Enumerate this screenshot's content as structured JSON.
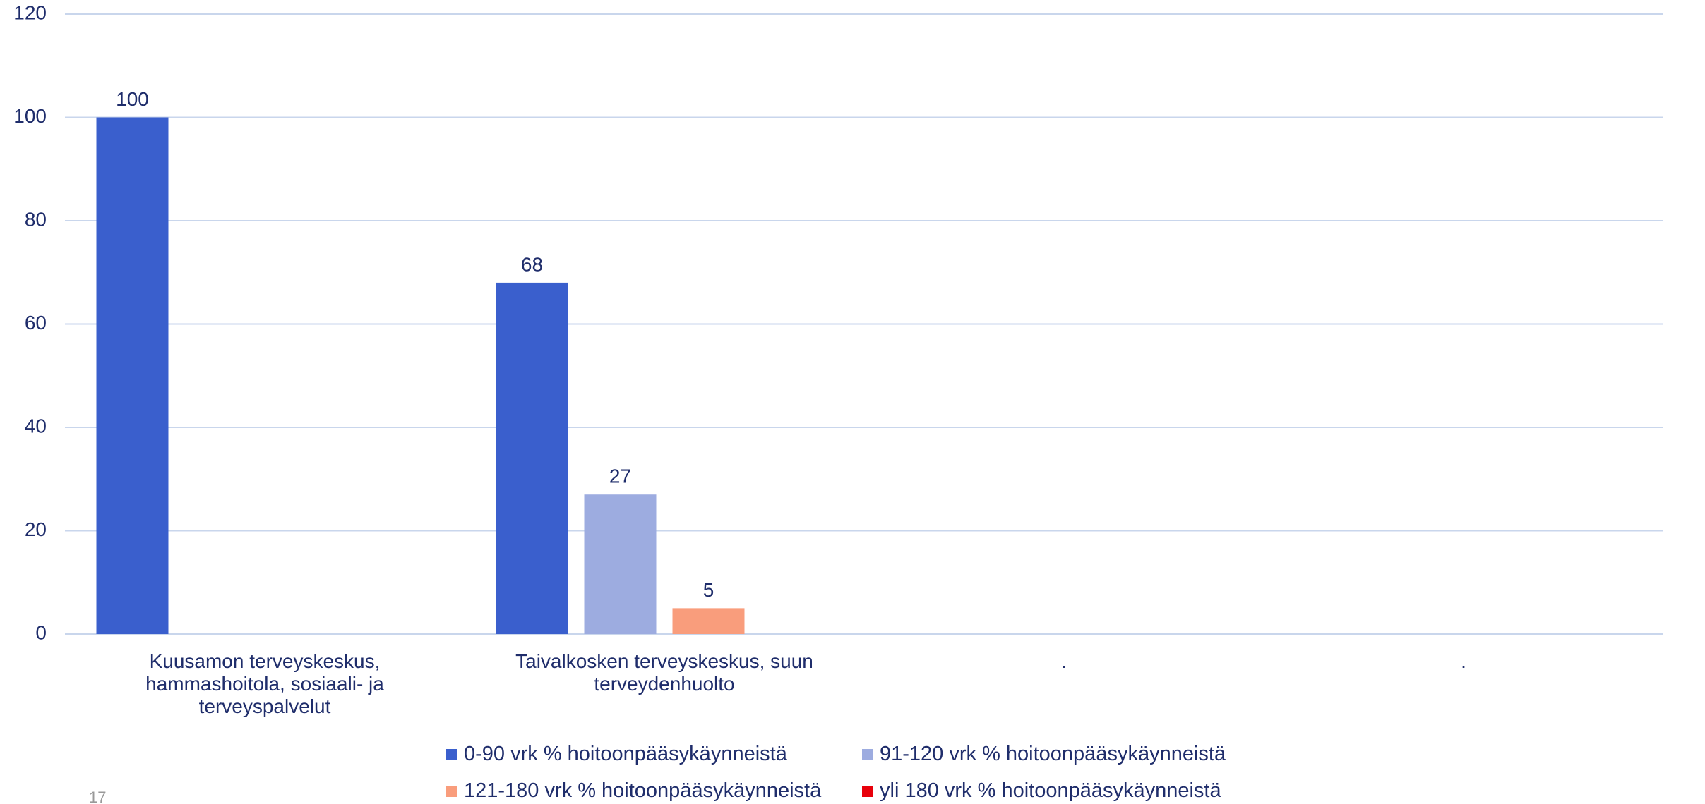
{
  "chart_data": {
    "type": "bar",
    "categories": [
      "Kuusamon terveyskeskus, hammashoitola, sosiaali- ja terveyspalvelut",
      "Taivalkosken terveyskeskus, suun terveydenhuolto",
      ".",
      "."
    ],
    "series": [
      {
        "name": "0-90 vrk % hoitoonpääsykäynneistä",
        "color": "#3a5fcd",
        "values": [
          100,
          68,
          null,
          null
        ]
      },
      {
        "name": "91-120 vrk % hoitoonpääsykäynneistä",
        "color": "#9dace0",
        "values": [
          null,
          27,
          null,
          null
        ]
      },
      {
        "name": "121-180 vrk % hoitoonpääsykäynneistä",
        "color": "#f99d7c",
        "values": [
          null,
          5,
          null,
          null
        ]
      },
      {
        "name": "yli 180 vrk % hoitoonpääsykäynneistä",
        "color": "#e8000b",
        "values": [
          null,
          null,
          null,
          null
        ]
      }
    ],
    "ylim": [
      0,
      120
    ],
    "yticks": [
      0,
      20,
      40,
      60,
      80,
      100,
      120
    ],
    "grid": true,
    "legend": "bottom"
  },
  "page_number": "17"
}
